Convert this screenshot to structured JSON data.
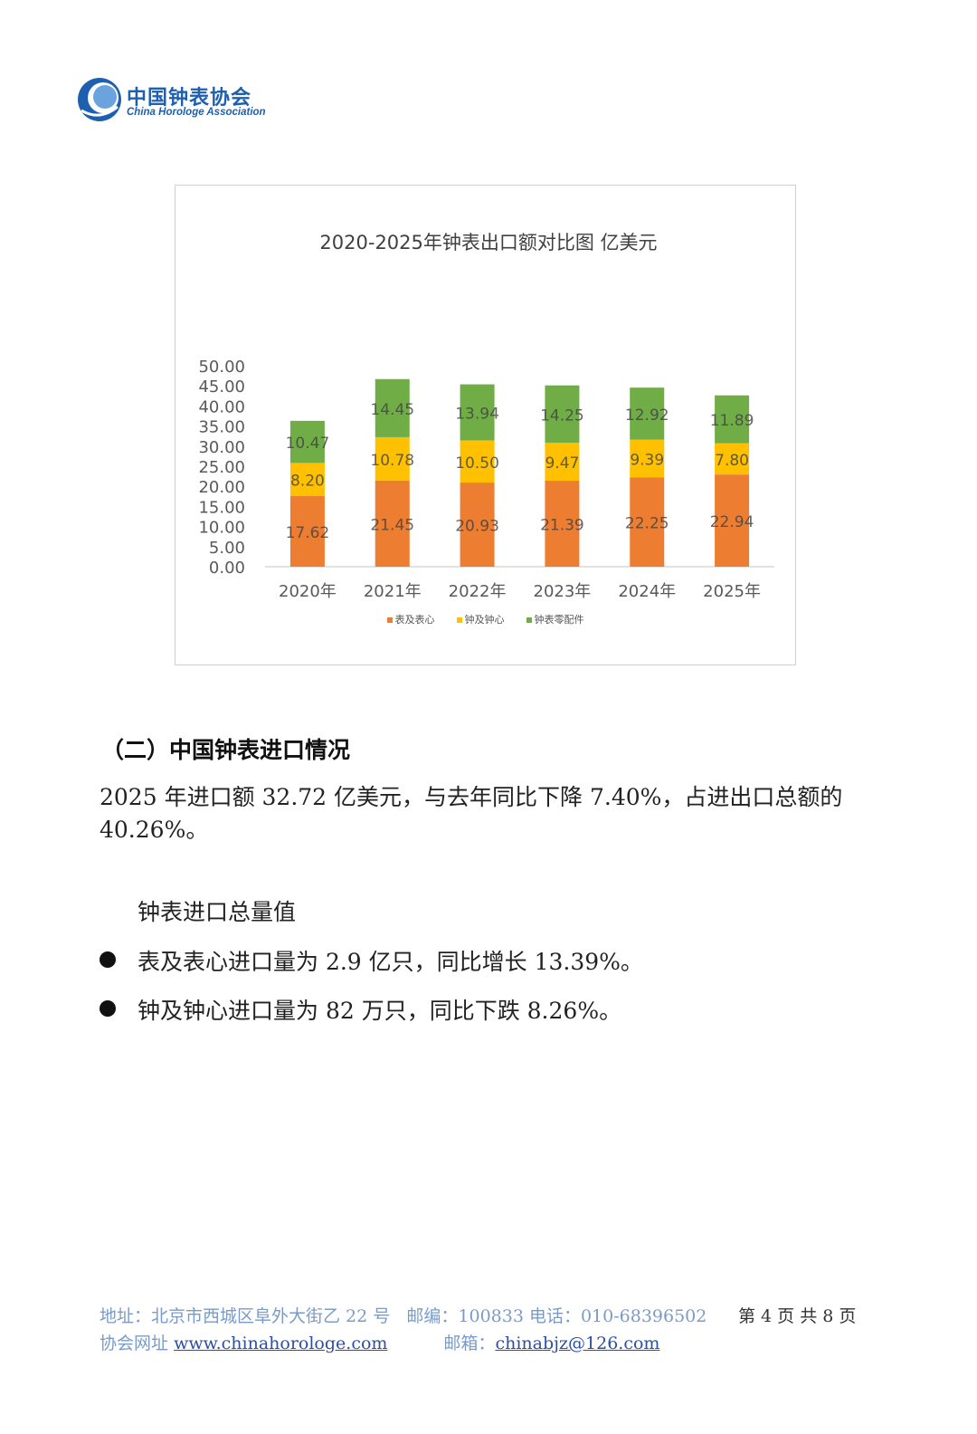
{
  "header": {
    "logo_cn": "中国钟表协会",
    "logo_en": "China Horologe Association"
  },
  "chart": {
    "title": "2020-2025年钟表出口额对比图 亿美元"
  },
  "chart_data": {
    "type": "bar",
    "stacked": true,
    "title": "2020-2025年钟表出口额对比图 亿美元",
    "categories": [
      "2020年",
      "2021年",
      "2022年",
      "2023年",
      "2024年",
      "2025年"
    ],
    "series": [
      {
        "name": "表及表心",
        "color": "#ED7D31",
        "values": [
          17.62,
          21.45,
          20.93,
          21.39,
          22.25,
          22.94
        ]
      },
      {
        "name": "钟及钟心",
        "color": "#FFC000",
        "values": [
          8.2,
          10.78,
          10.5,
          9.47,
          9.39,
          7.8
        ]
      },
      {
        "name": "钟表零配件",
        "color": "#70AD47",
        "values": [
          10.47,
          14.45,
          13.94,
          14.25,
          12.92,
          11.89
        ]
      }
    ],
    "ylim": [
      0,
      50
    ],
    "yticks": [
      "0.00",
      "5.00",
      "10.00",
      "15.00",
      "20.00",
      "25.00",
      "30.00",
      "35.00",
      "40.00",
      "45.00",
      "50.00"
    ],
    "grid": false,
    "legend_position": "bottom"
  },
  "section": {
    "heading": "（二）中国钟表进口情况",
    "paragraph": "2025 年进口额 32.72 亿美元，与去年同比下降 7.40%，占进出口总额的 40.26%。",
    "subheading": "钟表进口总量值",
    "bullets": [
      "表及表心进口量为 2.9 亿只，同比增长 13.39%。",
      "钟及钟心进口量为 82 万只，同比下跌 8.26%。"
    ]
  },
  "footer": {
    "address": "地址：北京市西城区阜外大街乙 22 号",
    "postcode": "邮编：100833",
    "phone": "电话：010-68396502",
    "website_label": "协会网址",
    "website": "www.chinahorologe.com",
    "email_label": "邮箱：",
    "email": "chinabjz@126.com",
    "page_info": "第 4 页 共 8 页"
  }
}
